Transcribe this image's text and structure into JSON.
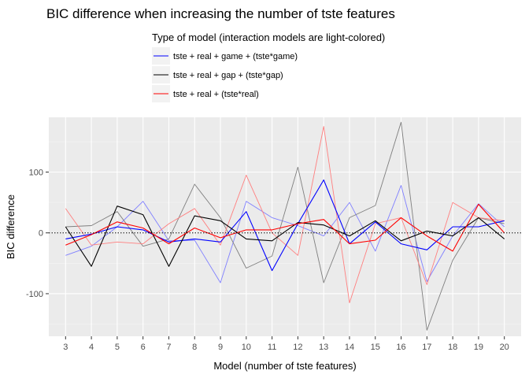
{
  "chart_data": {
    "type": "line",
    "title": "BIC difference when increasing the number of tste features",
    "xlabel": "Model (number of tste features)",
    "ylabel": "BIC difference",
    "x": [
      3,
      4,
      5,
      6,
      7,
      8,
      9,
      10,
      11,
      12,
      13,
      14,
      15,
      16,
      17,
      18,
      19,
      20
    ],
    "xlim": [
      2.35,
      20.65
    ],
    "ylim": [
      -170,
      190
    ],
    "y_ticks": [
      -100,
      0,
      100
    ],
    "reference_line": 0,
    "grid": true,
    "legend": {
      "title": "Type of model (interaction models are light-colored)",
      "placement": "top"
    },
    "series": [
      {
        "name": "tste + real + game + (tste*game)",
        "color": "#0000ff",
        "light_color": "#7f7fff",
        "values": [
          -10,
          -2,
          10,
          5,
          -15,
          -10,
          -15,
          35,
          -62,
          15,
          87,
          -18,
          18,
          -18,
          -28,
          10,
          10,
          20
        ],
        "interaction_values": [
          -37,
          -22,
          10,
          52,
          -13,
          -12,
          -82,
          52,
          25,
          12,
          -5,
          50,
          -30,
          78,
          -80,
          -5,
          48,
          10
        ]
      },
      {
        "name": "tste + real + gap + (tste*gap)",
        "color": "#000000",
        "light_color": "#7f7f7f",
        "values": [
          10,
          -55,
          44,
          30,
          -55,
          28,
          20,
          -10,
          -13,
          17,
          13,
          -5,
          20,
          -13,
          3,
          -5,
          25,
          -10
        ],
        "interaction_values": [
          10,
          12,
          35,
          -22,
          -10,
          80,
          25,
          -58,
          -38,
          108,
          -82,
          25,
          45,
          182,
          -160,
          -45,
          25,
          15
        ]
      },
      {
        "name": "tste + real + (tste*real)",
        "color": "#ff0000",
        "light_color": "#ff7f7f",
        "values": [
          -20,
          -3,
          18,
          8,
          -18,
          8,
          -8,
          5,
          5,
          15,
          22,
          -18,
          -12,
          25,
          -5,
          -30,
          47,
          0
        ],
        "interaction_values": [
          40,
          -20,
          -15,
          -18,
          15,
          40,
          -20,
          95,
          0,
          -37,
          175,
          -115,
          15,
          25,
          -85,
          50,
          25,
          20
        ]
      }
    ]
  }
}
